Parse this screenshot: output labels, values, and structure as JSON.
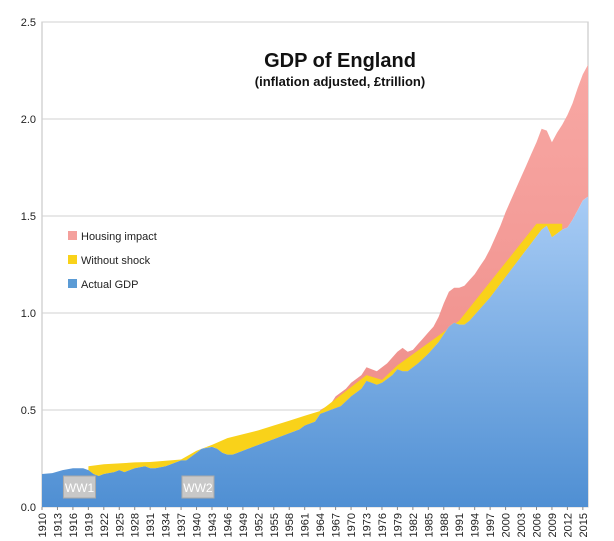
{
  "chart_data": {
    "type": "area",
    "title": "GDP of England",
    "subtitle": "(inflation adjusted, £trillion)",
    "xlabel": "",
    "ylabel": "",
    "xlim": [
      1910,
      2016
    ],
    "ylim": [
      0,
      2.5
    ],
    "yticks": [
      "0.0",
      "0.5",
      "1.0",
      "1.5",
      "2.0",
      "2.5"
    ],
    "xticks": [
      1910,
      1913,
      1916,
      1919,
      1922,
      1925,
      1928,
      1931,
      1934,
      1937,
      1940,
      1943,
      1946,
      1949,
      1952,
      1955,
      1958,
      1961,
      1964,
      1967,
      1970,
      1973,
      1976,
      1979,
      1982,
      1985,
      1988,
      1991,
      1994,
      1997,
      2000,
      2003,
      2006,
      2009,
      2012,
      2015
    ],
    "grid": "horizontal",
    "legend_position": "left",
    "series": [
      {
        "name": "Housing impact",
        "color": "#f4a09c",
        "points": [
          [
            1964,
            0.5
          ],
          [
            1966,
            0.53
          ],
          [
            1967,
            0.57
          ],
          [
            1969,
            0.61
          ],
          [
            1970,
            0.64
          ],
          [
            1972,
            0.68
          ],
          [
            1973,
            0.72
          ],
          [
            1975,
            0.7
          ],
          [
            1976,
            0.72
          ],
          [
            1977,
            0.74
          ],
          [
            1979,
            0.8
          ],
          [
            1980,
            0.82
          ],
          [
            1981,
            0.8
          ],
          [
            1982,
            0.81
          ],
          [
            1983,
            0.84
          ],
          [
            1984,
            0.87
          ],
          [
            1985,
            0.9
          ],
          [
            1986,
            0.93
          ],
          [
            1987,
            0.98
          ],
          [
            1988,
            1.05
          ],
          [
            1989,
            1.11
          ],
          [
            1990,
            1.13
          ],
          [
            1991,
            1.13
          ],
          [
            1992,
            1.14
          ],
          [
            1993,
            1.17
          ],
          [
            1994,
            1.2
          ],
          [
            1995,
            1.24
          ],
          [
            1996,
            1.28
          ],
          [
            1997,
            1.33
          ],
          [
            1998,
            1.39
          ],
          [
            1999,
            1.45
          ],
          [
            2000,
            1.52
          ],
          [
            2001,
            1.58
          ],
          [
            2002,
            1.64
          ],
          [
            2003,
            1.7
          ],
          [
            2004,
            1.76
          ],
          [
            2005,
            1.82
          ],
          [
            2006,
            1.88
          ],
          [
            2007,
            1.95
          ],
          [
            2008,
            1.94
          ],
          [
            2009,
            1.88
          ],
          [
            2010,
            1.93
          ],
          [
            2011,
            1.97
          ],
          [
            2012,
            2.02
          ],
          [
            2013,
            2.08
          ],
          [
            2014,
            2.16
          ],
          [
            2015,
            2.23
          ],
          [
            2016,
            2.28
          ]
        ]
      },
      {
        "name": "Without shock",
        "color": "#f9d21a",
        "points": [
          [
            1919,
            0.21
          ],
          [
            1922,
            0.22
          ],
          [
            1925,
            0.225
          ],
          [
            1928,
            0.23
          ],
          [
            1931,
            0.232
          ],
          [
            1934,
            0.238
          ],
          [
            1937,
            0.245
          ],
          [
            1940,
            0.29
          ],
          [
            1943,
            0.32
          ],
          [
            1946,
            0.355
          ],
          [
            1949,
            0.375
          ],
          [
            1952,
            0.395
          ],
          [
            1955,
            0.42
          ],
          [
            1958,
            0.445
          ],
          [
            1961,
            0.47
          ],
          [
            1964,
            0.495
          ],
          [
            1973,
            0.68
          ],
          [
            1976,
            0.655
          ],
          [
            1979,
            0.73
          ],
          [
            1991,
            0.96
          ],
          [
            2006,
            1.46
          ],
          [
            2009,
            1.46
          ],
          [
            2011,
            1.46
          ]
        ]
      },
      {
        "name": "Actual GDP",
        "color": "#5b9bd5",
        "points": [
          [
            1910,
            0.17
          ],
          [
            1912,
            0.175
          ],
          [
            1914,
            0.19
          ],
          [
            1916,
            0.2
          ],
          [
            1918,
            0.2
          ],
          [
            1919,
            0.19
          ],
          [
            1920,
            0.17
          ],
          [
            1921,
            0.16
          ],
          [
            1922,
            0.17
          ],
          [
            1924,
            0.18
          ],
          [
            1925,
            0.19
          ],
          [
            1926,
            0.18
          ],
          [
            1928,
            0.2
          ],
          [
            1930,
            0.21
          ],
          [
            1931,
            0.2
          ],
          [
            1932,
            0.2
          ],
          [
            1934,
            0.21
          ],
          [
            1936,
            0.23
          ],
          [
            1937,
            0.24
          ],
          [
            1938,
            0.24
          ],
          [
            1940,
            0.28
          ],
          [
            1941,
            0.3
          ],
          [
            1943,
            0.31
          ],
          [
            1944,
            0.3
          ],
          [
            1945,
            0.28
          ],
          [
            1946,
            0.27
          ],
          [
            1947,
            0.27
          ],
          [
            1948,
            0.28
          ],
          [
            1950,
            0.3
          ],
          [
            1952,
            0.32
          ],
          [
            1955,
            0.35
          ],
          [
            1958,
            0.38
          ],
          [
            1960,
            0.4
          ],
          [
            1961,
            0.42
          ],
          [
            1963,
            0.44
          ],
          [
            1964,
            0.48
          ],
          [
            1966,
            0.5
          ],
          [
            1968,
            0.52
          ],
          [
            1970,
            0.57
          ],
          [
            1972,
            0.61
          ],
          [
            1973,
            0.65
          ],
          [
            1974,
            0.64
          ],
          [
            1975,
            0.63
          ],
          [
            1976,
            0.64
          ],
          [
            1978,
            0.68
          ],
          [
            1979,
            0.71
          ],
          [
            1980,
            0.7
          ],
          [
            1981,
            0.7
          ],
          [
            1983,
            0.74
          ],
          [
            1985,
            0.79
          ],
          [
            1987,
            0.85
          ],
          [
            1988,
            0.89
          ],
          [
            1989,
            0.93
          ],
          [
            1990,
            0.95
          ],
          [
            1991,
            0.94
          ],
          [
            1992,
            0.94
          ],
          [
            1993,
            0.96
          ],
          [
            1995,
            1.02
          ],
          [
            1997,
            1.08
          ],
          [
            1999,
            1.15
          ],
          [
            2001,
            1.22
          ],
          [
            2003,
            1.29
          ],
          [
            2005,
            1.36
          ],
          [
            2007,
            1.43
          ],
          [
            2008,
            1.45
          ],
          [
            2009,
            1.39
          ],
          [
            2010,
            1.41
          ],
          [
            2011,
            1.43
          ],
          [
            2012,
            1.44
          ],
          [
            2013,
            1.48
          ],
          [
            2014,
            1.53
          ],
          [
            2015,
            1.58
          ],
          [
            2016,
            1.6
          ]
        ]
      }
    ],
    "annotations": [
      {
        "text": "WW1",
        "x_range": [
          1913,
          1920
        ]
      },
      {
        "text": "WW2",
        "x_range": [
          1936,
          1943
        ]
      }
    ]
  }
}
